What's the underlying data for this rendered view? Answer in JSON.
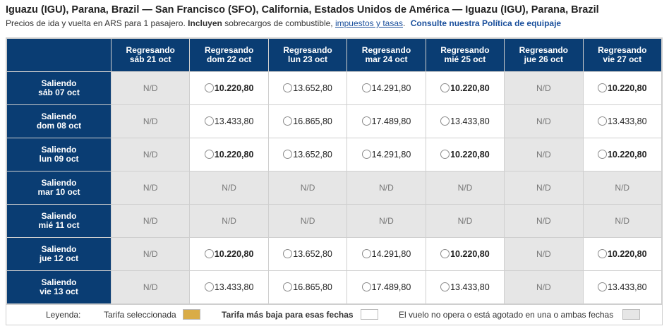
{
  "header": {
    "title": "Iguazu (IGU), Parana, Brazil — San Francisco (SFO), California, Estados Unidos de América — Iguazu (IGU), Parana, Brazil",
    "subtitle_pre": "Precios de ida y vuelta en ARS para 1 pasajero.",
    "subtitle_bold": "Incluyen",
    "subtitle_post": "sobrecargos de combustible,",
    "taxes_link": "impuestos y tasas",
    "dot": ".",
    "policy_link": "Consulte nuestra Política de equipaje"
  },
  "columns": [
    {
      "l1": "Regresando",
      "l2": "sáb 21 oct"
    },
    {
      "l1": "Regresando",
      "l2": "dom 22 oct"
    },
    {
      "l1": "Regresando",
      "l2": "lun 23 oct"
    },
    {
      "l1": "Regresando",
      "l2": "mar 24 oct"
    },
    {
      "l1": "Regresando",
      "l2": "mié 25 oct"
    },
    {
      "l1": "Regresando",
      "l2": "jue 26 oct"
    },
    {
      "l1": "Regresando",
      "l2": "vie 27 oct"
    }
  ],
  "rows": [
    {
      "l1": "Saliendo",
      "l2": "sáb 07 oct",
      "cells": [
        {
          "v": "N/D",
          "na": true
        },
        {
          "v": "10.220,80",
          "low": true
        },
        {
          "v": "13.652,80"
        },
        {
          "v": "14.291,80"
        },
        {
          "v": "10.220,80",
          "low": true
        },
        {
          "v": "N/D",
          "na": true
        },
        {
          "v": "10.220,80",
          "low": true
        }
      ]
    },
    {
      "l1": "Saliendo",
      "l2": "dom 08 oct",
      "cells": [
        {
          "v": "N/D",
          "na": true
        },
        {
          "v": "13.433,80"
        },
        {
          "v": "16.865,80"
        },
        {
          "v": "17.489,80"
        },
        {
          "v": "13.433,80"
        },
        {
          "v": "N/D",
          "na": true
        },
        {
          "v": "13.433,80"
        }
      ]
    },
    {
      "l1": "Saliendo",
      "l2": "lun 09 oct",
      "cells": [
        {
          "v": "N/D",
          "na": true
        },
        {
          "v": "10.220,80",
          "low": true
        },
        {
          "v": "13.652,80"
        },
        {
          "v": "14.291,80"
        },
        {
          "v": "10.220,80",
          "low": true
        },
        {
          "v": "N/D",
          "na": true
        },
        {
          "v": "10.220,80",
          "low": true
        }
      ]
    },
    {
      "l1": "Saliendo",
      "l2": "mar 10 oct",
      "cells": [
        {
          "v": "N/D",
          "na": true
        },
        {
          "v": "N/D",
          "na": true
        },
        {
          "v": "N/D",
          "na": true
        },
        {
          "v": "N/D",
          "na": true
        },
        {
          "v": "N/D",
          "na": true
        },
        {
          "v": "N/D",
          "na": true
        },
        {
          "v": "N/D",
          "na": true
        }
      ]
    },
    {
      "l1": "Saliendo",
      "l2": "mié 11 oct",
      "cells": [
        {
          "v": "N/D",
          "na": true
        },
        {
          "v": "N/D",
          "na": true
        },
        {
          "v": "N/D",
          "na": true
        },
        {
          "v": "N/D",
          "na": true
        },
        {
          "v": "N/D",
          "na": true
        },
        {
          "v": "N/D",
          "na": true
        },
        {
          "v": "N/D",
          "na": true
        }
      ]
    },
    {
      "l1": "Saliendo",
      "l2": "jue 12 oct",
      "cells": [
        {
          "v": "N/D",
          "na": true
        },
        {
          "v": "10.220,80",
          "low": true
        },
        {
          "v": "13.652,80"
        },
        {
          "v": "14.291,80"
        },
        {
          "v": "10.220,80",
          "low": true
        },
        {
          "v": "N/D",
          "na": true
        },
        {
          "v": "10.220,80",
          "low": true
        }
      ]
    },
    {
      "l1": "Saliendo",
      "l2": "vie 13 oct",
      "cells": [
        {
          "v": "N/D",
          "na": true
        },
        {
          "v": "13.433,80"
        },
        {
          "v": "16.865,80"
        },
        {
          "v": "17.489,80"
        },
        {
          "v": "13.433,80"
        },
        {
          "v": "N/D",
          "na": true
        },
        {
          "v": "13.433,80"
        }
      ]
    }
  ],
  "legend": {
    "label": "Leyenda:",
    "selected": "Tarifa seleccionada",
    "lowest": "Tarifa más baja para esas fechas",
    "unavailable": "El vuelo no opera o está agotado en una o ambas fechas"
  },
  "colors": {
    "header_bg": "#0a3d73",
    "selected_swatch": "#d9ac47",
    "lowest_swatch": "#ffffff",
    "unavailable_swatch": "#e6e6e6"
  }
}
